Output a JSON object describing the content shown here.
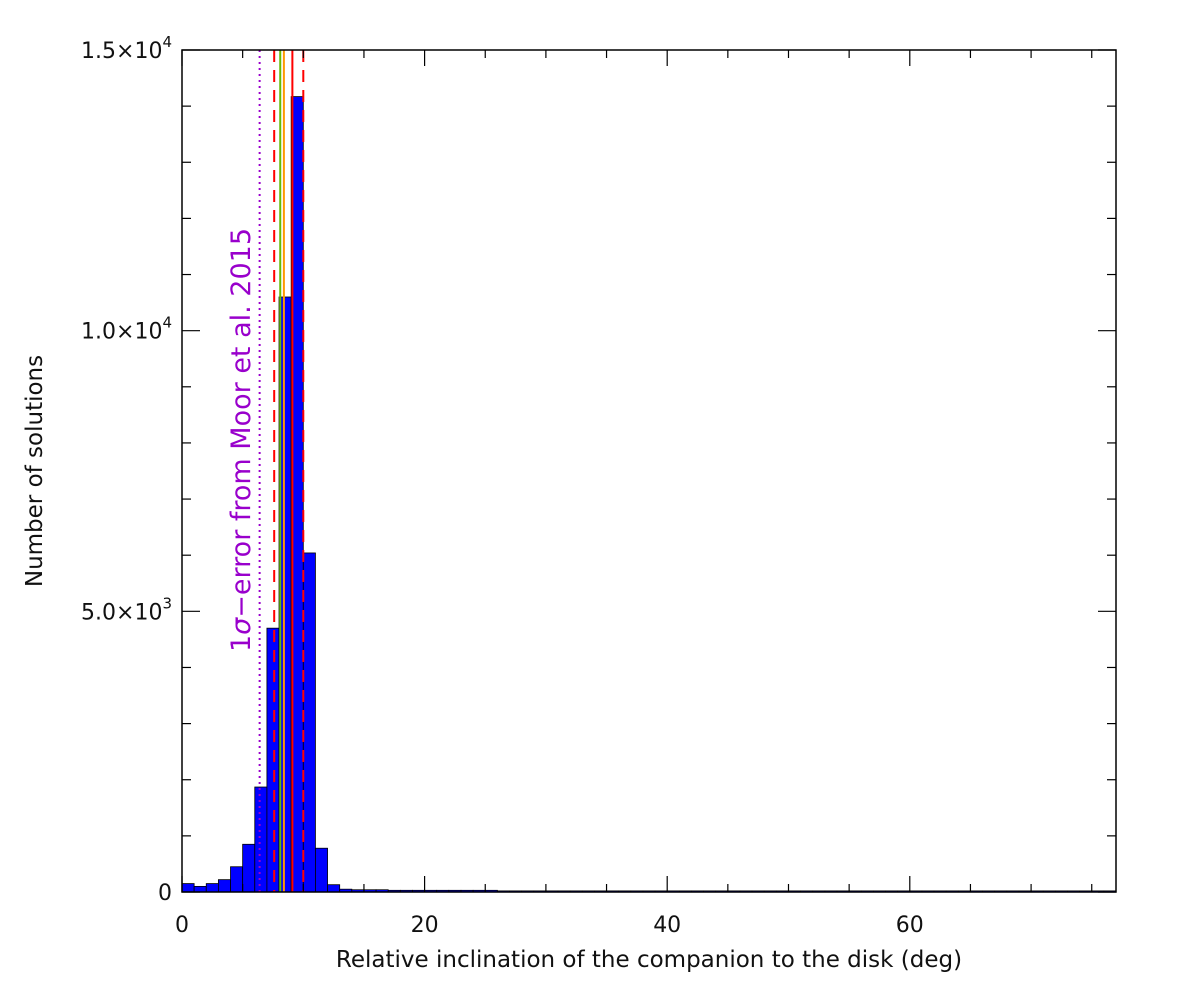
{
  "chart_data": {
    "type": "bar",
    "title": "",
    "xlabel": "Relative inclination of the companion to the disk (deg)",
    "ylabel": "Number of solutions",
    "xlim": [
      0,
      77
    ],
    "ylim": [
      0,
      15000
    ],
    "bin_width": 1,
    "x_ticks": [
      {
        "value": 0,
        "label": "0"
      },
      {
        "value": 20,
        "label": "20"
      },
      {
        "value": 40,
        "label": "40"
      },
      {
        "value": 60,
        "label": "60"
      }
    ],
    "y_ticks": [
      {
        "value": 0,
        "label": "0"
      },
      {
        "value": 5000,
        "label": "5.0×10",
        "exp": "3"
      },
      {
        "value": 10000,
        "label": "1.0×10",
        "exp": "4"
      },
      {
        "value": 15000,
        "label": "1.5×10",
        "exp": "4"
      }
    ],
    "series": [
      {
        "color": "#0000ff",
        "x": [
          0,
          1,
          2,
          3,
          4,
          5,
          6,
          7,
          8,
          9,
          10,
          11,
          12,
          13,
          14,
          15,
          16,
          17,
          18,
          19,
          20,
          21,
          22,
          23,
          24,
          25,
          26,
          27,
          28,
          29,
          30,
          31,
          32,
          33,
          34,
          35,
          36,
          37,
          38,
          39,
          40,
          41,
          42,
          43,
          44,
          45,
          46,
          47,
          48,
          49,
          50,
          51,
          52,
          53,
          54,
          55,
          56,
          57,
          58,
          59,
          60,
          61,
          62,
          63,
          64,
          65,
          66,
          67,
          68,
          69,
          70,
          71,
          72,
          73,
          74,
          75,
          76
        ],
        "values": [
          150,
          100,
          150,
          220,
          450,
          850,
          1870,
          4700,
          10600,
          14170,
          6040,
          780,
          130,
          50,
          40,
          40,
          40,
          30,
          30,
          30,
          30,
          30,
          30,
          30,
          30,
          30,
          20,
          20,
          20,
          20,
          20,
          20,
          20,
          20,
          20,
          20,
          20,
          20,
          20,
          20,
          20,
          20,
          20,
          20,
          20,
          20,
          20,
          20,
          20,
          20,
          20,
          20,
          20,
          20,
          20,
          20,
          20,
          20,
          20,
          20,
          20,
          20,
          20,
          20,
          20,
          20,
          20,
          20,
          20,
          20,
          20,
          20,
          20,
          20,
          20,
          20,
          20
        ]
      }
    ],
    "vertical_lines": [
      {
        "x": 6.4,
        "style": "dotted",
        "color": "#9900cc"
      },
      {
        "x": 7.6,
        "style": "dashed",
        "color": "#ff0000"
      },
      {
        "x": 8.1,
        "style": "solid",
        "color": "#66bb00"
      },
      {
        "x": 8.4,
        "style": "solid",
        "color": "#ff9900"
      },
      {
        "x": 9.1,
        "style": "solid",
        "color": "#ff0000"
      },
      {
        "x": 10.0,
        "style": "dashed",
        "color": "#ff0000"
      }
    ],
    "annotation": {
      "text_pre": "1",
      "text_symbol": "σ",
      "text_post": "−error from Moor et al. 2015",
      "color": "#9900cc",
      "orientation": "vertical"
    }
  }
}
